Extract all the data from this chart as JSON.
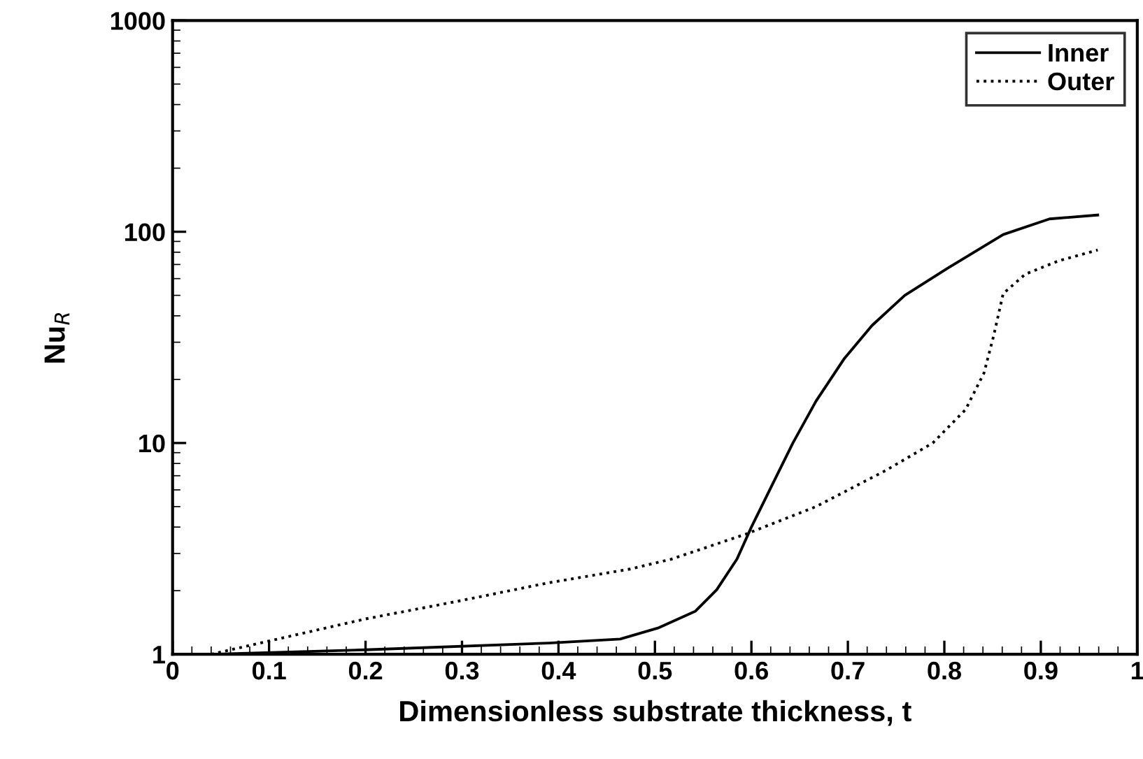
{
  "chart_data": {
    "type": "line",
    "xlabel": "Dimensionless substrate thickness, t",
    "ylabel": "Nu$_{R}$",
    "log": "y",
    "xlim": [
      0,
      1
    ],
    "ylim": [
      1,
      1000
    ],
    "xticks": [
      0,
      0.1,
      0.2,
      0.3,
      0.4,
      0.5,
      0.6,
      0.7,
      0.8,
      0.9,
      1
    ],
    "yticks": [
      1,
      10,
      100,
      1000
    ],
    "grid": false,
    "legend": "top right",
    "series": [
      {
        "name": "Inner",
        "color": "#000000",
        "line_style": "solid",
        "x": [
          0.04,
          0.2,
          0.39,
          0.464,
          0.503,
          0.542,
          0.564,
          0.585,
          0.6,
          0.619,
          0.643,
          0.667,
          0.696,
          0.725,
          0.759,
          0.803,
          0.861,
          0.909,
          0.959
        ],
        "values": [
          1.0,
          1.05,
          1.13,
          1.18,
          1.33,
          1.6,
          2.02,
          2.82,
          4.0,
          6.0,
          10,
          15.8,
          25,
          36,
          50,
          67,
          97,
          115,
          120
        ]
      },
      {
        "name": "Outer",
        "color": "#000000",
        "line_style": "dotted",
        "x": [
          0.04,
          0.2,
          0.295,
          0.39,
          0.474,
          0.517,
          0.594,
          0.667,
          0.739,
          0.788,
          0.822,
          0.841,
          0.851,
          0.861,
          0.884,
          0.919,
          0.959
        ],
        "values": [
          1.0,
          1.47,
          1.78,
          2.18,
          2.53,
          2.82,
          3.7,
          5.0,
          7.4,
          10,
          14.4,
          21.4,
          32,
          51,
          63,
          73,
          82
        ]
      }
    ]
  }
}
